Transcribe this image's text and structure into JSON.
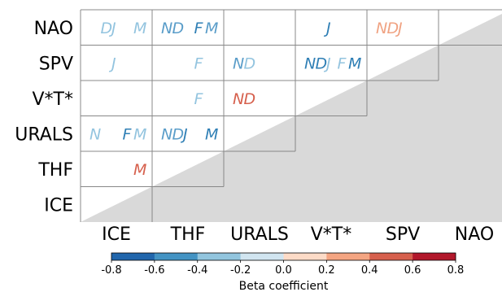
{
  "chart_data": {
    "type": "heatmap",
    "row_labels": [
      "NAO",
      "SPV",
      "V*T*",
      "URALS",
      "THF",
      "ICE"
    ],
    "col_labels": [
      "ICE",
      "THF",
      "URALS",
      "V*T*",
      "SPV",
      "NAO"
    ],
    "months": [
      "N",
      "D",
      "J",
      "F",
      "M"
    ],
    "colors": {
      "blue_strong": "#2f7fb5",
      "blue_medium": "#5a9dc9",
      "blue_light": "#93c4df",
      "orange_light": "#f0a383",
      "red_medium": "#d6604d",
      "grid": "#888888",
      "masked": "#d9d9d9"
    },
    "cells": [
      {
        "row": 0,
        "col": 0,
        "letters": [
          {
            "m": "D",
            "value": -0.2
          },
          {
            "m": "J",
            "value": -0.2
          },
          {
            "m": "M",
            "value": -0.2
          }
        ]
      },
      {
        "row": 0,
        "col": 1,
        "letters": [
          {
            "m": "N",
            "value": -0.3
          },
          {
            "m": "D",
            "value": -0.3
          },
          {
            "m": "F",
            "value": -0.5
          },
          {
            "m": "M",
            "value": -0.4
          }
        ]
      },
      {
        "row": 0,
        "col": 3,
        "letters": [
          {
            "m": "J",
            "value": -0.5
          }
        ]
      },
      {
        "row": 0,
        "col": 4,
        "letters": [
          {
            "m": "N",
            "value": 0.3
          },
          {
            "m": "D",
            "value": 0.3
          },
          {
            "m": "J",
            "value": 0.3
          }
        ]
      },
      {
        "row": 1,
        "col": 0,
        "letters": [
          {
            "m": "J",
            "value": -0.2
          }
        ]
      },
      {
        "row": 1,
        "col": 1,
        "letters": [
          {
            "m": "F",
            "value": -0.2
          }
        ]
      },
      {
        "row": 1,
        "col": 2,
        "letters": [
          {
            "m": "N",
            "value": -0.4
          },
          {
            "m": "D",
            "value": -0.2
          }
        ]
      },
      {
        "row": 1,
        "col": 3,
        "letters": [
          {
            "m": "N",
            "value": -0.5
          },
          {
            "m": "D",
            "value": -0.5
          },
          {
            "m": "J",
            "value": -0.2
          },
          {
            "m": "F",
            "value": -0.2
          },
          {
            "m": "M",
            "value": -0.5
          }
        ]
      },
      {
        "row": 2,
        "col": 1,
        "letters": [
          {
            "m": "F",
            "value": -0.2
          }
        ]
      },
      {
        "row": 2,
        "col": 2,
        "letters": [
          {
            "m": "N",
            "value": 0.5
          },
          {
            "m": "D",
            "value": 0.5
          }
        ]
      },
      {
        "row": 3,
        "col": 0,
        "letters": [
          {
            "m": "N",
            "value": -0.2
          },
          {
            "m": "F",
            "value": -0.5
          },
          {
            "m": "M",
            "value": -0.2
          }
        ]
      },
      {
        "row": 3,
        "col": 1,
        "letters": [
          {
            "m": "N",
            "value": -0.4
          },
          {
            "m": "D",
            "value": -0.3
          },
          {
            "m": "J",
            "value": -0.5
          },
          {
            "m": "M",
            "value": -0.5
          }
        ]
      },
      {
        "row": 4,
        "col": 0,
        "letters": [
          {
            "m": "M",
            "value": 0.5
          }
        ]
      }
    ],
    "colorbar": {
      "label": "Beta coefficient",
      "ticks": [
        "-0.8",
        "-0.6",
        "-0.4",
        "-0.2",
        "0.0",
        "0.2",
        "0.4",
        "0.6",
        "0.8"
      ],
      "bins": [
        "#2166ac",
        "#4393c3",
        "#92c5de",
        "#d1e5f0",
        "#fddbc7",
        "#f4a582",
        "#d6604d",
        "#b2182b"
      ]
    }
  }
}
